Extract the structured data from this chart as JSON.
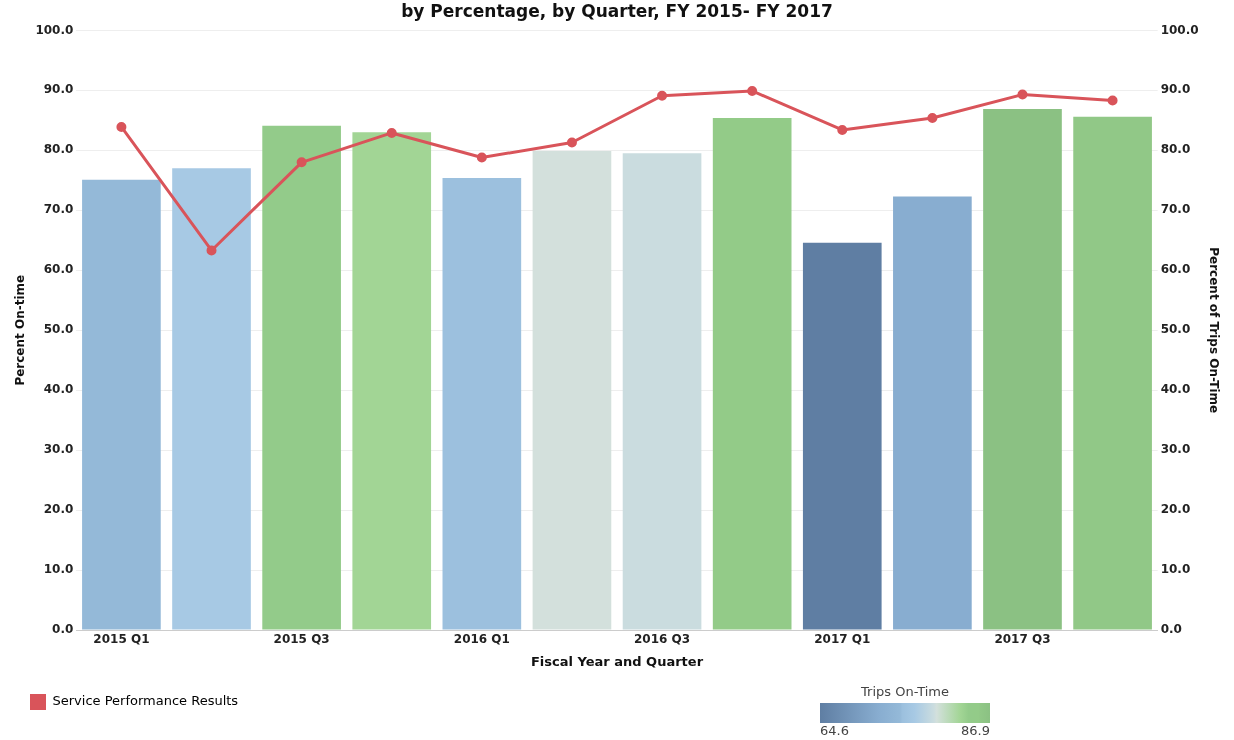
{
  "chart_data": {
    "type": "bar",
    "title": "by Percentage, by Quarter, FY 2015- FY 2017",
    "xlabel": "Fiscal Year and Quarter",
    "ylabel": "Percent On-time",
    "y2label": "Percent of Trips On-Time",
    "clabel": "Trips On-Time",
    "clim": [
      64.6,
      86.9
    ],
    "cticks": [
      {
        "value": 64.6,
        "label": "64.6"
      },
      {
        "value": 86.9,
        "label": "86.9"
      }
    ],
    "categories": [
      "2015 Q1",
      null,
      "2015 Q3",
      null,
      "2016 Q1",
      null,
      "2016 Q3",
      null,
      "2017 Q1",
      null,
      "2017 Q3",
      null
    ],
    "series": [
      {
        "colors": [
          "#94b9d8",
          "#a7c9e4",
          "#93cb8a",
          "#a2d595",
          "#9cc0de",
          "#d3e0dc",
          "#cadcdf",
          "#93cb88",
          "#5f7ea3",
          "#88add0",
          "#8bc183",
          "#91c887"
        ],
        "values": [
          75.1,
          77.0,
          84.1,
          83.0,
          75.4,
          79.9,
          79.5,
          85.4,
          64.6,
          72.3,
          86.9,
          85.6
        ]
      },
      {
        "type": "line",
        "name": "Service Performance Results",
        "color": "#d9545a",
        "axis": "y2",
        "values": [
          83.9,
          63.3,
          78.0,
          82.9,
          78.8,
          81.3,
          89.1,
          89.9,
          83.4,
          85.4,
          89.3,
          88.3
        ]
      }
    ],
    "ylim": [
      0,
      100
    ],
    "yticks": [
      {
        "value": 0,
        "label": "0.0"
      },
      {
        "value": 10,
        "label": "10.0"
      },
      {
        "value": 20,
        "label": "20.0"
      },
      {
        "value": 30,
        "label": "30.0"
      },
      {
        "value": 40,
        "label": "40.0"
      },
      {
        "value": 50,
        "label": "50.0"
      },
      {
        "value": 60,
        "label": "60.0"
      },
      {
        "value": 70,
        "label": "70.0"
      },
      {
        "value": 80,
        "label": "80.0"
      },
      {
        "value": 90,
        "label": "90.0"
      },
      {
        "value": 100,
        "label": "100.0"
      }
    ],
    "y2lim": [
      0,
      100
    ],
    "y2ticks": [
      {
        "value": 0,
        "label": "0.0"
      },
      {
        "value": 10,
        "label": "10.0"
      },
      {
        "value": 20,
        "label": "20.0"
      },
      {
        "value": 30,
        "label": "30.0"
      },
      {
        "value": 40,
        "label": "40.0"
      },
      {
        "value": 50,
        "label": "50.0"
      },
      {
        "value": 60,
        "label": "60.0"
      },
      {
        "value": 70,
        "label": "70.0"
      },
      {
        "value": 80,
        "label": "80.0"
      },
      {
        "value": 90,
        "label": "90.0"
      },
      {
        "value": 100,
        "label": "100.0"
      }
    ],
    "grid": "y",
    "legend": "bottom left",
    "marker": "circle",
    "line_style": "solid"
  }
}
